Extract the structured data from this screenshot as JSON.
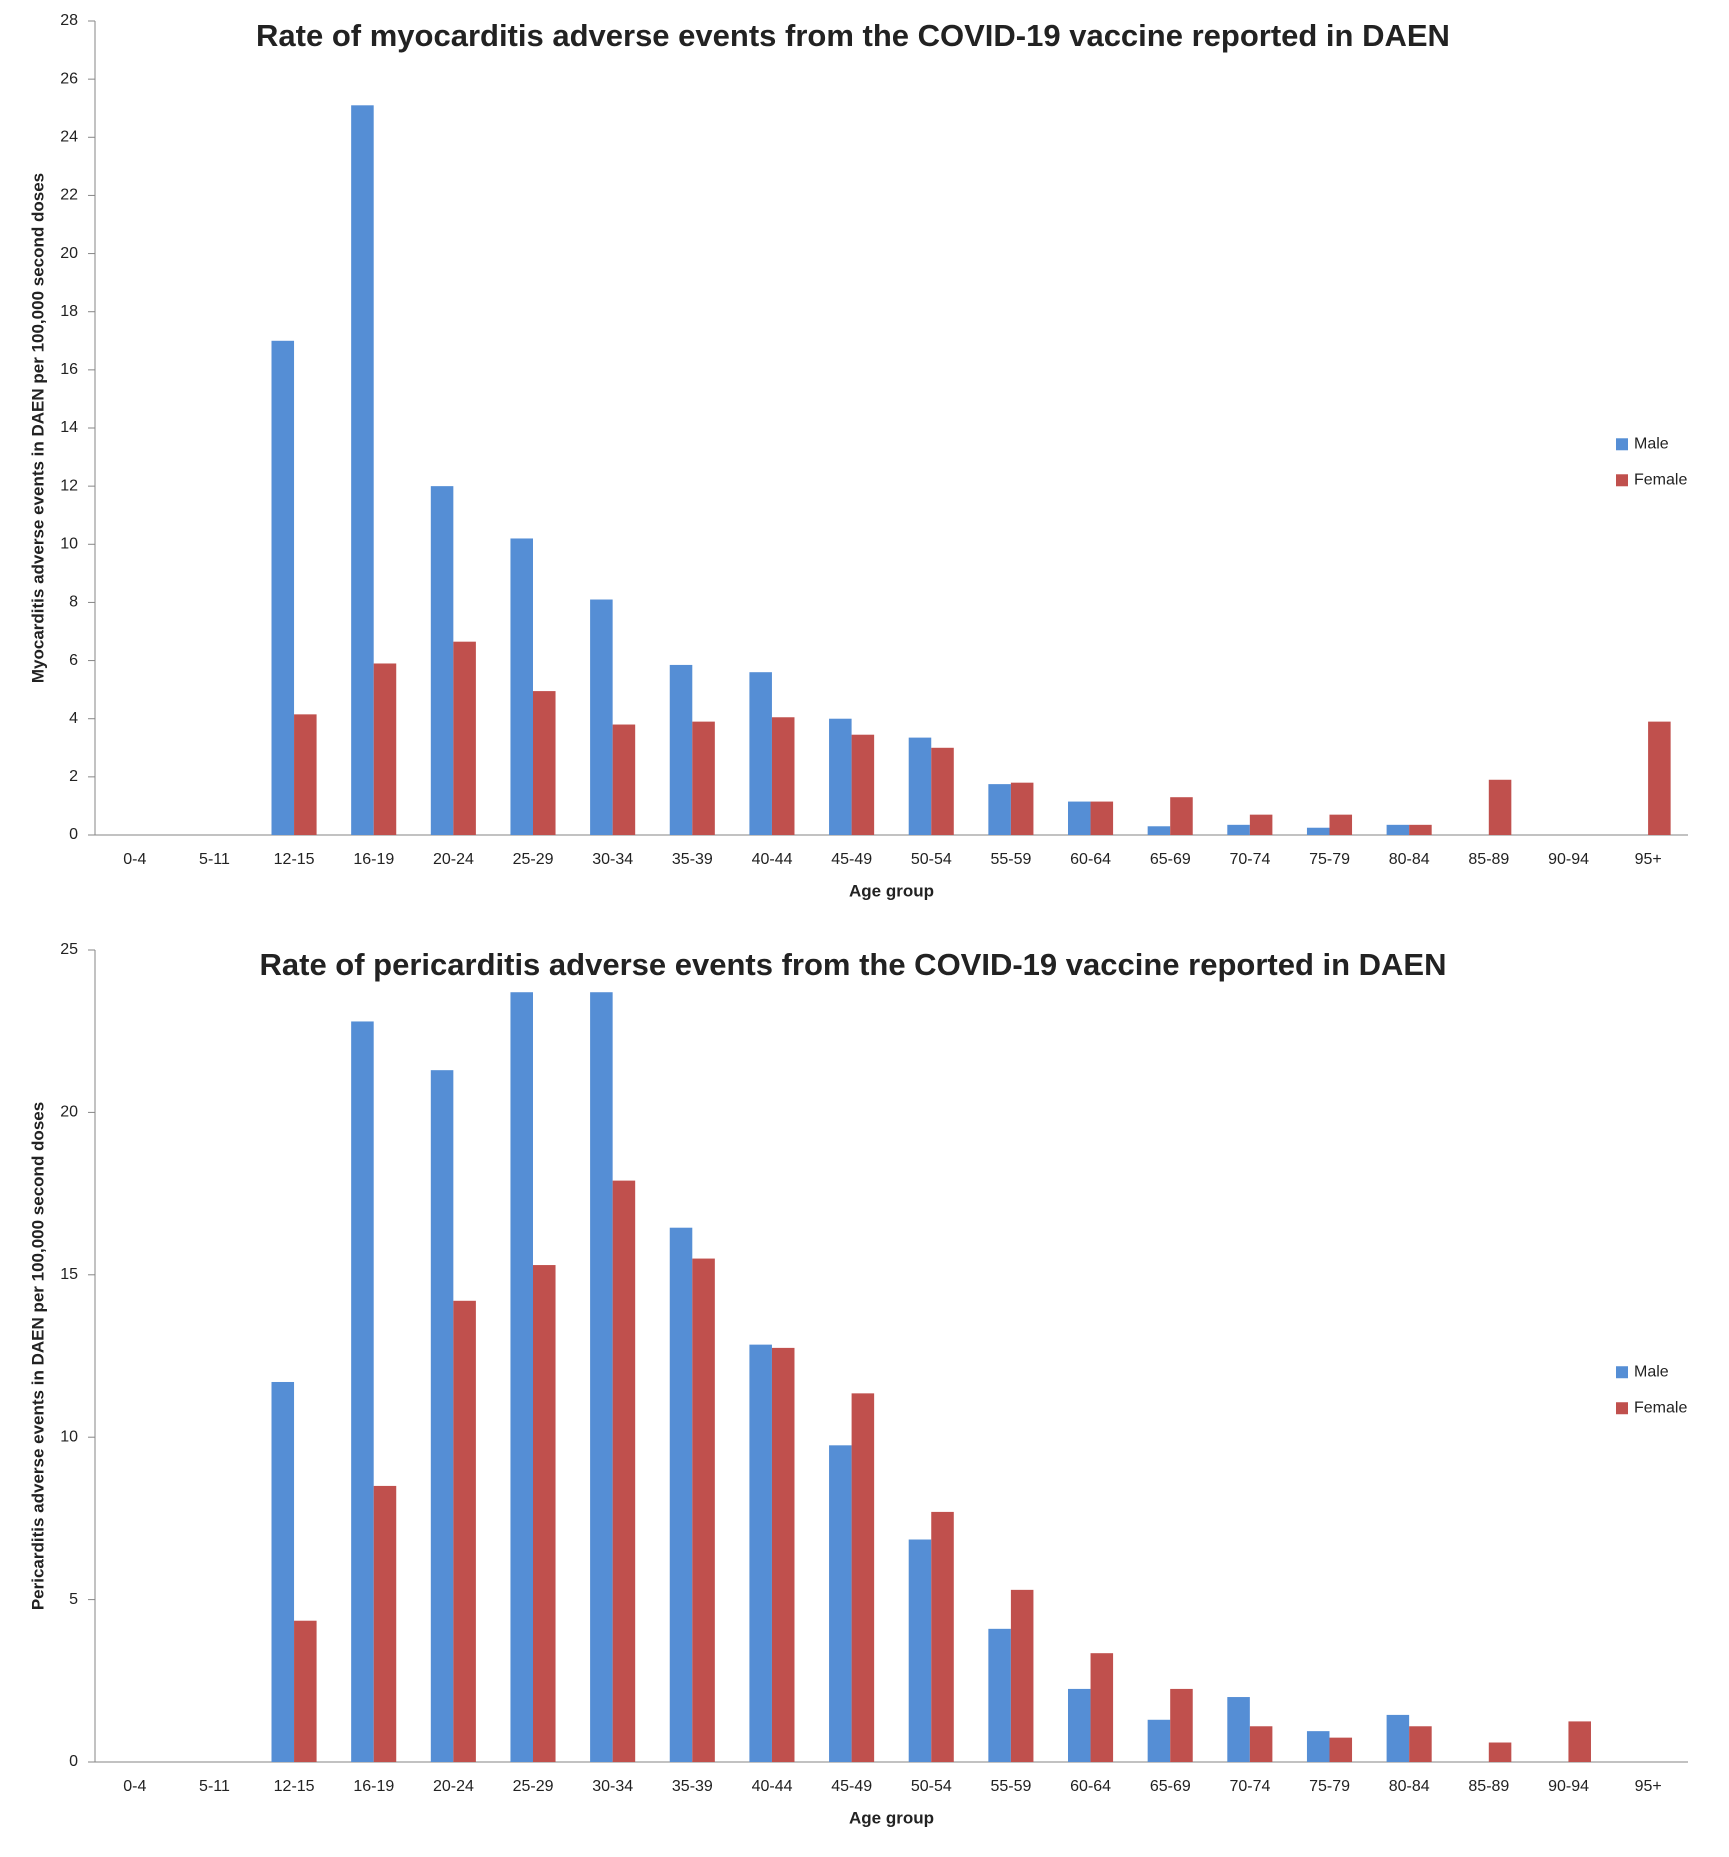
{
  "chart_data": [
    {
      "type": "bar",
      "title": "Rate of myocarditis adverse events from the COVID-19 vaccine reported in DAEN",
      "x_label": "Age group",
      "y_label": "Myocarditis adverse events in DAEN per 100,000 second doses",
      "categories": [
        "0-4",
        "5-11",
        "12-15",
        "16-19",
        "20-24",
        "25-29",
        "30-34",
        "35-39",
        "40-44",
        "45-49",
        "50-54",
        "55-59",
        "60-64",
        "65-69",
        "70-74",
        "75-79",
        "80-84",
        "85-89",
        "90-94",
        "95+"
      ],
      "series": [
        {
          "name": "Male",
          "color": "#558ed5",
          "values": [
            0,
            0,
            17,
            25.1,
            12,
            10.2,
            8.1,
            5.85,
            5.6,
            4.0,
            3.35,
            1.75,
            1.15,
            0.3,
            0.35,
            0.25,
            0.35,
            0,
            0,
            0
          ]
        },
        {
          "name": "Female",
          "color": "#c0504d",
          "values": [
            0,
            0,
            4.15,
            5.9,
            6.65,
            4.95,
            3.8,
            3.9,
            4.05,
            3.45,
            3.0,
            1.8,
            1.15,
            1.3,
            0.7,
            0.7,
            0.35,
            1.9,
            0,
            3.9
          ]
        }
      ],
      "ylim": [
        0,
        28
      ],
      "yticks": [
        0,
        2,
        4,
        6,
        8,
        10,
        12,
        14,
        16,
        18,
        20,
        22,
        24,
        26,
        28
      ],
      "grid": false,
      "legend": "right"
    },
    {
      "type": "bar",
      "title": "Rate of pericarditis adverse events from the COVID-19 vaccine reported in DAEN",
      "x_label": "Age group",
      "y_label": "Pericarditis adverse events in DAEN per 100,000 second doses",
      "categories": [
        "0-4",
        "5-11",
        "12-15",
        "16-19",
        "20-24",
        "25-29",
        "30-34",
        "35-39",
        "40-44",
        "45-49",
        "50-54",
        "55-59",
        "60-64",
        "65-69",
        "70-74",
        "75-79",
        "80-84",
        "85-89",
        "90-94",
        "95+"
      ],
      "series": [
        {
          "name": "Male",
          "color": "#558ed5",
          "values": [
            0,
            0,
            11.7,
            22.8,
            21.3,
            23.7,
            23.7,
            16.45,
            12.85,
            9.75,
            6.85,
            4.1,
            2.25,
            1.3,
            2.0,
            0.95,
            1.45,
            0,
            0,
            0
          ]
        },
        {
          "name": "Female",
          "color": "#c0504d",
          "values": [
            0,
            0,
            4.35,
            8.5,
            14.2,
            15.3,
            17.9,
            15.5,
            12.75,
            11.35,
            7.7,
            5.3,
            3.35,
            2.25,
            1.1,
            0.75,
            1.1,
            0.6,
            1.25,
            0
          ]
        }
      ],
      "ylim": [
        0,
        25
      ],
      "yticks": [
        0,
        5,
        10,
        15,
        20,
        25
      ],
      "grid": false,
      "legend": "right"
    }
  ]
}
